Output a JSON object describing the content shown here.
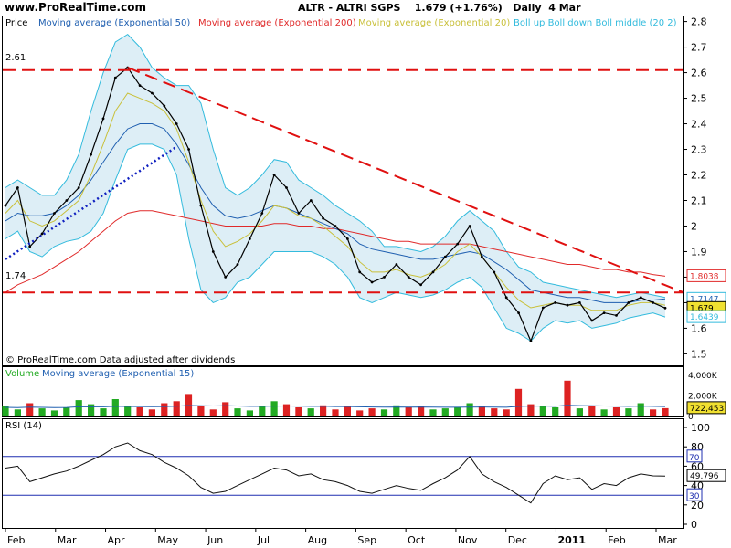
{
  "header": {
    "site": "www.ProRealTime.com",
    "ticker": "ALTR - ALTRI SGPS",
    "price": "1.679 (+1.76%)",
    "period": "Daily  4 Mar"
  },
  "legend": {
    "price": "Price",
    "ema50": "Moving average (Exponential 50)",
    "ema200": "Moving average (Exponential 200)",
    "ema20": "Moving average (Exponential 20)",
    "boll": "Boll up Boll down Boll middle (20 2)",
    "volume": "Volume",
    "vol_ema": "Moving average (Exponential 15)",
    "rsi": "RSI (14)"
  },
  "copyright": "© ProRealTime.com Data adjusted after dividends",
  "annotations": {
    "level_high": "2.61",
    "level_low": "1.74"
  },
  "colors": {
    "ema50": "#1f5fb0",
    "ema200": "#e02a2a",
    "ema20": "#c9c03a",
    "boll": "#33bbdd",
    "boll_fill": "#ddeef6",
    "volume_up": "#22aa22",
    "volume_down": "#dd2222",
    "rsi": "#111111",
    "dashed": "#e01010",
    "dotted": "#1020c0"
  },
  "chart_data": [
    {
      "type": "line",
      "panel": "price",
      "x_labels": [
        "Feb",
        "Mar",
        "Apr",
        "May",
        "Jun",
        "Jul",
        "Aug",
        "Sep",
        "Oct",
        "Nov",
        "Dec",
        "2011",
        "Feb",
        "Mar"
      ],
      "y_ticks": [
        "1.5",
        "1.6",
        "1.7",
        "1.8",
        "1.9",
        "2",
        "2.1",
        "2.2",
        "2.3",
        "2.4",
        "2.5",
        "2.6",
        "2.7",
        "2.8"
      ],
      "ylim": [
        1.48,
        2.82
      ],
      "series": [
        {
          "name": "Price",
          "values": [
            2.08,
            2.15,
            1.92,
            1.97,
            2.05,
            2.1,
            2.15,
            2.28,
            2.42,
            2.58,
            2.62,
            2.55,
            2.52,
            2.47,
            2.4,
            2.3,
            2.08,
            1.9,
            1.8,
            1.85,
            1.95,
            2.05,
            2.2,
            2.15,
            2.05,
            2.1,
            2.03,
            2.0,
            1.95,
            1.82,
            1.78,
            1.8,
            1.85,
            1.8,
            1.77,
            1.82,
            1.88,
            1.93,
            2.0,
            1.88,
            1.82,
            1.72,
            1.66,
            1.55,
            1.68,
            1.7,
            1.69,
            1.7,
            1.63,
            1.66,
            1.65,
            1.7,
            1.72,
            1.7,
            1.679
          ]
        },
        {
          "name": "Moving average (Exponential 20)",
          "values": [
            2.05,
            2.1,
            2.02,
            2.0,
            2.02,
            2.06,
            2.1,
            2.2,
            2.32,
            2.45,
            2.52,
            2.5,
            2.48,
            2.45,
            2.38,
            2.25,
            2.1,
            1.98,
            1.92,
            1.94,
            1.97,
            2.02,
            2.08,
            2.07,
            2.04,
            2.03,
            2.0,
            1.96,
            1.92,
            1.86,
            1.82,
            1.82,
            1.83,
            1.81,
            1.8,
            1.82,
            1.85,
            1.9,
            1.93,
            1.88,
            1.82,
            1.76,
            1.71,
            1.68,
            1.69,
            1.7,
            1.69,
            1.69,
            1.67,
            1.67,
            1.67,
            1.69,
            1.7,
            1.7,
            1.69
          ]
        },
        {
          "name": "Moving average (Exponential 50)",
          "values": [
            2.02,
            2.05,
            2.04,
            2.04,
            2.05,
            2.08,
            2.12,
            2.18,
            2.25,
            2.32,
            2.38,
            2.4,
            2.4,
            2.38,
            2.32,
            2.24,
            2.15,
            2.08,
            2.04,
            2.03,
            2.04,
            2.06,
            2.08,
            2.07,
            2.05,
            2.03,
            2.01,
            1.99,
            1.97,
            1.93,
            1.91,
            1.9,
            1.89,
            1.88,
            1.87,
            1.87,
            1.88,
            1.89,
            1.9,
            1.89,
            1.86,
            1.83,
            1.79,
            1.75,
            1.74,
            1.73,
            1.72,
            1.72,
            1.71,
            1.7,
            1.7,
            1.7,
            1.71,
            1.71,
            1.7147
          ]
        },
        {
          "name": "Moving average (Exponential 200)",
          "values": [
            1.74,
            1.77,
            1.79,
            1.81,
            1.84,
            1.87,
            1.9,
            1.94,
            1.98,
            2.02,
            2.05,
            2.06,
            2.06,
            2.05,
            2.04,
            2.03,
            2.02,
            2.01,
            2.0,
            2.0,
            2.0,
            2.0,
            2.01,
            2.01,
            2.0,
            2.0,
            1.99,
            1.99,
            1.98,
            1.97,
            1.96,
            1.95,
            1.94,
            1.94,
            1.93,
            1.93,
            1.93,
            1.93,
            1.93,
            1.92,
            1.91,
            1.9,
            1.89,
            1.88,
            1.87,
            1.86,
            1.85,
            1.85,
            1.84,
            1.83,
            1.83,
            1.82,
            1.82,
            1.81,
            1.8038
          ]
        }
      ],
      "bollinger_upper": [
        2.15,
        2.18,
        2.15,
        2.12,
        2.12,
        2.18,
        2.28,
        2.45,
        2.6,
        2.72,
        2.75,
        2.7,
        2.62,
        2.58,
        2.55,
        2.55,
        2.48,
        2.3,
        2.15,
        2.12,
        2.15,
        2.2,
        2.26,
        2.25,
        2.18,
        2.15,
        2.12,
        2.08,
        2.05,
        2.02,
        1.98,
        1.92,
        1.92,
        1.91,
        1.9,
        1.92,
        1.96,
        2.02,
        2.06,
        2.02,
        1.98,
        1.9,
        1.84,
        1.82,
        1.78,
        1.77,
        1.76,
        1.75,
        1.74,
        1.73,
        1.72,
        1.73,
        1.74,
        1.73,
        1.72
      ],
      "bollinger_lower": [
        1.95,
        1.98,
        1.9,
        1.88,
        1.92,
        1.94,
        1.95,
        1.98,
        2.05,
        2.18,
        2.3,
        2.32,
        2.32,
        2.3,
        2.2,
        1.95,
        1.75,
        1.7,
        1.72,
        1.78,
        1.8,
        1.85,
        1.9,
        1.9,
        1.9,
        1.9,
        1.88,
        1.85,
        1.8,
        1.72,
        1.7,
        1.72,
        1.74,
        1.73,
        1.72,
        1.73,
        1.75,
        1.78,
        1.8,
        1.76,
        1.68,
        1.6,
        1.58,
        1.55,
        1.6,
        1.63,
        1.62,
        1.63,
        1.6,
        1.61,
        1.62,
        1.64,
        1.65,
        1.66,
        1.6439
      ],
      "last_values": {
        "ema200": "1.8038",
        "ema50": "1.7147",
        "price": "1.679",
        "boll_lower": "1.6439"
      },
      "trendlines": [
        {
          "style": "dashed",
          "label": "2.61",
          "y": 2.61
        },
        {
          "style": "dashed",
          "label": "1.74",
          "y": 1.74
        },
        {
          "style": "dashed",
          "from": {
            "i": 10,
            "y": 2.62
          },
          "to": {
            "i": 56,
            "y": 1.74
          }
        },
        {
          "style": "dotted",
          "from": {
            "i": 0,
            "y": 1.87
          },
          "to": {
            "i": 14,
            "y": 2.31
          }
        }
      ]
    },
    {
      "type": "bar",
      "panel": "volume",
      "y_ticks": [
        "4,000K",
        "2,000K",
        "0"
      ],
      "ylim": [
        0,
        4000
      ],
      "last_value": "722,453",
      "values": [
        900,
        600,
        1200,
        700,
        500,
        800,
        1500,
        1100,
        700,
        1600,
        900,
        800,
        600,
        1200,
        1400,
        2100,
        900,
        600,
        1300,
        700,
        500,
        900,
        1400,
        1100,
        800,
        700,
        1000,
        600,
        900,
        500,
        700,
        600,
        1000,
        800,
        900,
        600,
        700,
        800,
        1200,
        900,
        700,
        600,
        2600,
        1100,
        900,
        800,
        3400,
        700,
        900,
        600,
        800,
        700,
        1200,
        600,
        722
      ],
      "ema": [
        800,
        780,
        820,
        800,
        780,
        790,
        850,
        870,
        850,
        900,
        890,
        880,
        860,
        880,
        910,
        980,
        960,
        930,
        950,
        930,
        900,
        900,
        920,
        930,
        920,
        900,
        910,
        880,
        880,
        850,
        840,
        820,
        840,
        830,
        840,
        820,
        810,
        810,
        830,
        840,
        830,
        810,
        900,
        920,
        920,
        910,
        1000,
        970,
        960,
        930,
        920,
        900,
        920,
        900,
        880
      ]
    },
    {
      "type": "line",
      "panel": "rsi",
      "y_ticks": [
        "100",
        "80",
        "60",
        "40",
        "20",
        "0"
      ],
      "ylim": [
        0,
        100
      ],
      "levels": [
        "70",
        "30"
      ],
      "last_value": "49.796",
      "values": [
        58,
        60,
        44,
        48,
        52,
        55,
        60,
        66,
        72,
        80,
        84,
        76,
        72,
        64,
        58,
        50,
        38,
        32,
        34,
        40,
        46,
        52,
        58,
        56,
        50,
        52,
        46,
        44,
        40,
        34,
        32,
        36,
        40,
        37,
        35,
        42,
        48,
        56,
        70,
        52,
        44,
        38,
        30,
        22,
        42,
        50,
        46,
        48,
        36,
        42,
        40,
        48,
        52,
        50,
        49.796
      ]
    }
  ]
}
